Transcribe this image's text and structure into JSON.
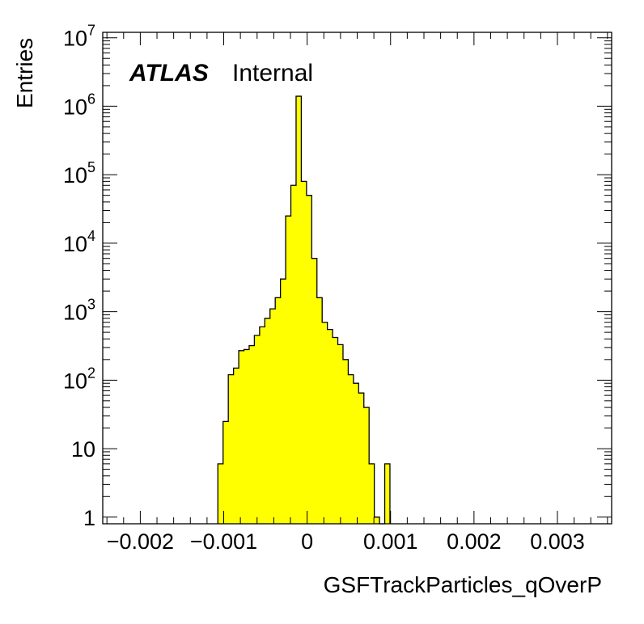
{
  "chart_data": {
    "type": "histogram",
    "xlabel": "GSFTrackParticles_qOverP",
    "ylabel": "Entries",
    "annotation": {
      "experiment": "ATLAS",
      "status": "Internal"
    },
    "x_range": [
      -0.00245,
      0.00365
    ],
    "y_range": [
      0.8,
      12000000
    ],
    "y_scale": "log",
    "x_ticks": [
      {
        "value": -0.002,
        "label": "−0.002"
      },
      {
        "value": -0.001,
        "label": "−0.001"
      },
      {
        "value": 0,
        "label": "0"
      },
      {
        "value": 0.001,
        "label": "0.001"
      },
      {
        "value": 0.002,
        "label": "0.002"
      },
      {
        "value": 0.003,
        "label": "0.003"
      }
    ],
    "y_ticks": [
      {
        "value": 1,
        "base": "1",
        "exp": ""
      },
      {
        "value": 10,
        "base": "10",
        "exp": ""
      },
      {
        "value": 100,
        "base": "10",
        "exp": "2"
      },
      {
        "value": 1000,
        "base": "10",
        "exp": "3"
      },
      {
        "value": 10000,
        "base": "10",
        "exp": "4"
      },
      {
        "value": 100000,
        "base": "10",
        "exp": "5"
      },
      {
        "value": 1000000,
        "base": "10",
        "exp": "6"
      },
      {
        "value": 10000000,
        "base": "10",
        "exp": "7"
      }
    ],
    "fill_color": "#ffff00",
    "line_color": "#000000",
    "bin_edges_start": -0.00107,
    "bin_width": 6.25e-05,
    "counts": [
      6,
      25,
      120,
      150,
      270,
      280,
      320,
      450,
      600,
      800,
      1100,
      1600,
      3000,
      25000,
      70000,
      1400000,
      80000,
      50000,
      6000,
      1600,
      700,
      550,
      420,
      330,
      200,
      120,
      90,
      65,
      40,
      6,
      1,
      0,
      6
    ]
  }
}
